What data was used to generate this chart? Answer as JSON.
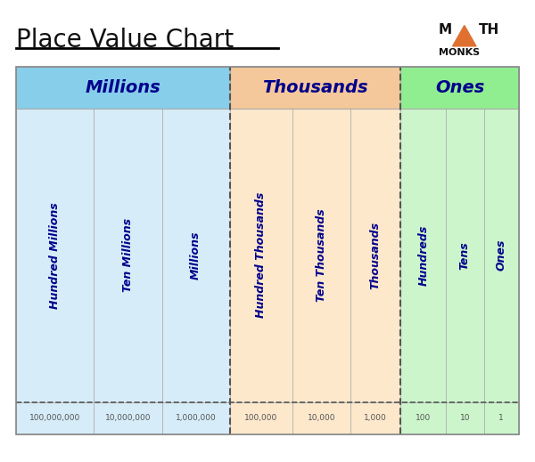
{
  "title": "Place Value Chart",
  "bg_color": "#ffffff",
  "chart_bg": "#ffffff",
  "groups": [
    {
      "name": "Millions",
      "color_header": "#87CEEB",
      "color_body": "#d6ecf8",
      "columns": [
        "Hundred Millions",
        "Ten Millions",
        "Millions"
      ],
      "values": [
        "100,000,000",
        "10,000,000",
        "1,000,000"
      ]
    },
    {
      "name": "Thousands",
      "color_header": "#f4c89a",
      "color_body": "#fde8cc",
      "columns": [
        "Hundred Thousands",
        "Ten Thousands",
        "Thousands"
      ],
      "values": [
        "100,000",
        "10,000",
        "1,000"
      ]
    },
    {
      "name": "Ones",
      "color_header": "#90ee90",
      "color_body": "#ccf5cc",
      "columns": [
        "Hundreds",
        "Tens",
        "Ones"
      ],
      "values": [
        "100",
        "10",
        "1"
      ]
    }
  ],
  "text_color": "#00008B",
  "value_color": "#555555",
  "dashed_line_color": "#555555",
  "border_color": "#aaaaaa",
  "title_color": "#111111",
  "logo_math_color": "#111111",
  "logo_monks_color": "#111111",
  "logo_triangle_color": "#e07030"
}
